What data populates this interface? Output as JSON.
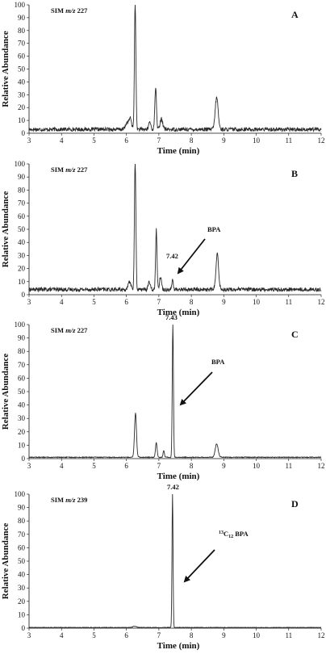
{
  "chart_data": [
    {
      "type": "line",
      "panel": "A",
      "mode": {
        "prefix": "SIM",
        "italic": "m/z",
        "mass": "227"
      },
      "xlabel": "Time (min)",
      "ylabel": "Relative Abundance",
      "xlim": [
        3,
        12
      ],
      "ylim": [
        0,
        100
      ],
      "xticks": [
        3,
        4,
        5,
        6,
        7,
        8,
        9,
        10,
        11,
        12
      ],
      "yticks": [
        0,
        10,
        20,
        30,
        40,
        50,
        60,
        70,
        80,
        90,
        100
      ],
      "baseline": 3,
      "noise": 1.5,
      "peaks": [
        {
          "x": 6.02,
          "y": 5,
          "w": 0.05
        },
        {
          "x": 6.12,
          "y": 8,
          "w": 0.04
        },
        {
          "x": 6.27,
          "y": 100,
          "w": 0.022
        },
        {
          "x": 6.72,
          "y": 6,
          "w": 0.03
        },
        {
          "x": 6.9,
          "y": 33,
          "w": 0.025
        },
        {
          "x": 7.08,
          "y": 8,
          "w": 0.04
        },
        {
          "x": 8.78,
          "y": 25,
          "w": 0.045
        }
      ],
      "annotations": []
    },
    {
      "type": "line",
      "panel": "B",
      "mode": {
        "prefix": "SIM",
        "italic": "m/z",
        "mass": "227"
      },
      "xlabel": "Time (min)",
      "ylabel": "Relative Abundance",
      "xlim": [
        3,
        12
      ],
      "ylim": [
        0,
        100
      ],
      "xticks": [
        3,
        4,
        5,
        6,
        7,
        8,
        9,
        10,
        11,
        12
      ],
      "yticks": [
        0,
        10,
        20,
        30,
        40,
        50,
        60,
        70,
        80,
        90,
        100
      ],
      "baseline": 4,
      "noise": 1.5,
      "peaks": [
        {
          "x": 6.1,
          "y": 6,
          "w": 0.04
        },
        {
          "x": 6.27,
          "y": 100,
          "w": 0.022
        },
        {
          "x": 6.7,
          "y": 6,
          "w": 0.03
        },
        {
          "x": 6.92,
          "y": 46,
          "w": 0.022
        },
        {
          "x": 7.05,
          "y": 10,
          "w": 0.03
        },
        {
          "x": 7.42,
          "y": 8,
          "w": 0.02
        },
        {
          "x": 8.8,
          "y": 27,
          "w": 0.04
        }
      ],
      "annotations": [
        {
          "kind": "peak-label",
          "text": "7.42"
        },
        {
          "kind": "compound",
          "text": "BPA"
        }
      ]
    },
    {
      "type": "line",
      "panel": "C",
      "mode": {
        "prefix": "SIM",
        "italic": "m/z",
        "mass": "227"
      },
      "xlabel": "Time (min)",
      "ylabel": "Relative Abundance",
      "xlim": [
        3,
        12
      ],
      "ylim": [
        0,
        100
      ],
      "xticks": [
        3,
        4,
        5,
        6,
        7,
        8,
        9,
        10,
        11,
        12
      ],
      "yticks": [
        0,
        10,
        20,
        30,
        40,
        50,
        60,
        70,
        80,
        90,
        100
      ],
      "baseline": 1,
      "noise": 0.3,
      "peaks": [
        {
          "x": 6.28,
          "y": 33,
          "w": 0.03
        },
        {
          "x": 6.92,
          "y": 11,
          "w": 0.025
        },
        {
          "x": 7.15,
          "y": 5,
          "w": 0.02
        },
        {
          "x": 7.43,
          "y": 100,
          "w": 0.018
        },
        {
          "x": 8.78,
          "y": 10,
          "w": 0.045
        }
      ],
      "annotations": [
        {
          "kind": "peak-label",
          "text": "7.43"
        },
        {
          "kind": "compound",
          "text": "BPA"
        }
      ]
    },
    {
      "type": "line",
      "panel": "D",
      "mode": {
        "prefix": "SIM",
        "italic": "m/z",
        "mass": "239"
      },
      "xlabel": "Time (min)",
      "ylabel": "Relative Abundance",
      "xlim": [
        3,
        12
      ],
      "ylim": [
        0,
        100
      ],
      "xticks": [
        3,
        4,
        5,
        6,
        7,
        8,
        9,
        10,
        11,
        12
      ],
      "yticks": [
        0,
        10,
        20,
        30,
        40,
        50,
        60,
        70,
        80,
        90,
        100
      ],
      "baseline": 0.5,
      "noise": 0.2,
      "peaks": [
        {
          "x": 6.25,
          "y": 1,
          "w": 0.05
        },
        {
          "x": 7.42,
          "y": 100,
          "w": 0.016
        }
      ],
      "annotations": [
        {
          "kind": "peak-label",
          "text": "7.42"
        },
        {
          "kind": "compound",
          "superscript": "13",
          "base": "C",
          "subscript": "12",
          "text": "BPA"
        }
      ]
    }
  ]
}
